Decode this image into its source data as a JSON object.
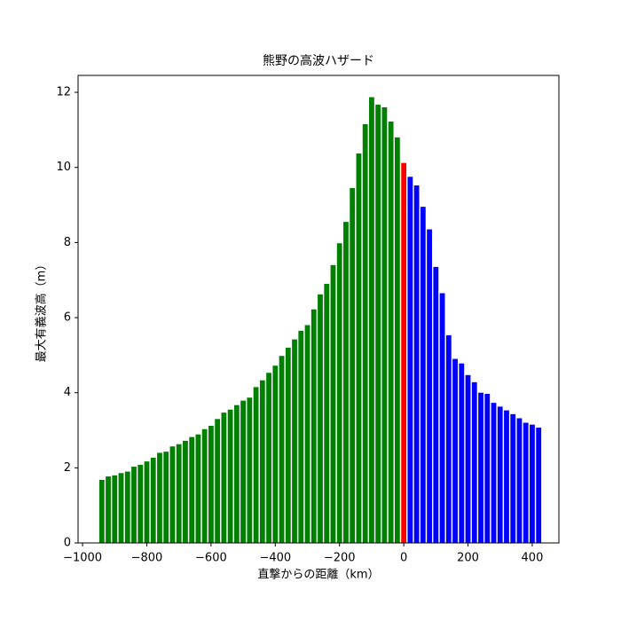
{
  "chart_data": {
    "type": "bar",
    "title": "熊野の高波ハザード",
    "x_label": "直撃からの距離（km）",
    "y_label": "最大有義波高（m）",
    "series": [
      {
        "color": "#008000",
        "x": [
          -940,
          -920,
          -900,
          -880,
          -860,
          -840,
          -820,
          -800,
          -780,
          -760,
          -740,
          -720,
          -700,
          -680,
          -660,
          -640,
          -620,
          -600,
          -580,
          -560,
          -540,
          -520,
          -500,
          -480,
          -460,
          -440,
          -420,
          -400,
          -380,
          -360,
          -340,
          -320,
          -300,
          -280,
          -260,
          -240,
          -220,
          -200,
          -180,
          -160,
          -140,
          -120,
          -100,
          -80,
          -60,
          -40,
          -20
        ],
        "values": [
          1.68,
          1.77,
          1.8,
          1.86,
          1.9,
          2.03,
          2.08,
          2.17,
          2.27,
          2.4,
          2.43,
          2.57,
          2.63,
          2.72,
          2.82,
          2.89,
          3.03,
          3.12,
          3.3,
          3.47,
          3.55,
          3.67,
          3.79,
          3.87,
          4.15,
          4.33,
          4.53,
          4.72,
          4.98,
          5.2,
          5.42,
          5.65,
          5.8,
          6.22,
          6.62,
          6.9,
          7.4,
          7.98,
          8.55,
          9.45,
          10.37,
          11.15,
          11.87,
          11.67,
          11.6,
          11.22,
          10.8
        ]
      },
      {
        "color": "#ff0000",
        "x": [
          0
        ],
        "values": [
          10.12
        ]
      },
      {
        "color": "#0000ff",
        "x": [
          20,
          40,
          60,
          80,
          100,
          120,
          140,
          160,
          180,
          200,
          220,
          240,
          260,
          280,
          300,
          320,
          340,
          360,
          380,
          400,
          420
        ],
        "values": [
          9.75,
          9.52,
          8.95,
          8.35,
          7.35,
          6.65,
          5.53,
          4.9,
          4.78,
          4.47,
          4.28,
          4.0,
          3.97,
          3.73,
          3.63,
          3.53,
          3.43,
          3.32,
          3.2,
          3.15,
          3.07
        ]
      }
    ],
    "bar_width": 16,
    "xlim": [
      -1014,
      483
    ],
    "xticks": [
      {
        "value": -1000,
        "label": "−1000"
      },
      {
        "value": -800,
        "label": "−800"
      },
      {
        "value": -600,
        "label": "−600"
      },
      {
        "value": -400,
        "label": "−400"
      },
      {
        "value": -200,
        "label": "−200"
      },
      0,
      200,
      400
    ],
    "ylim": [
      0,
      12.45
    ],
    "yticks": [
      0,
      2,
      4,
      6,
      8,
      10,
      12
    ]
  }
}
